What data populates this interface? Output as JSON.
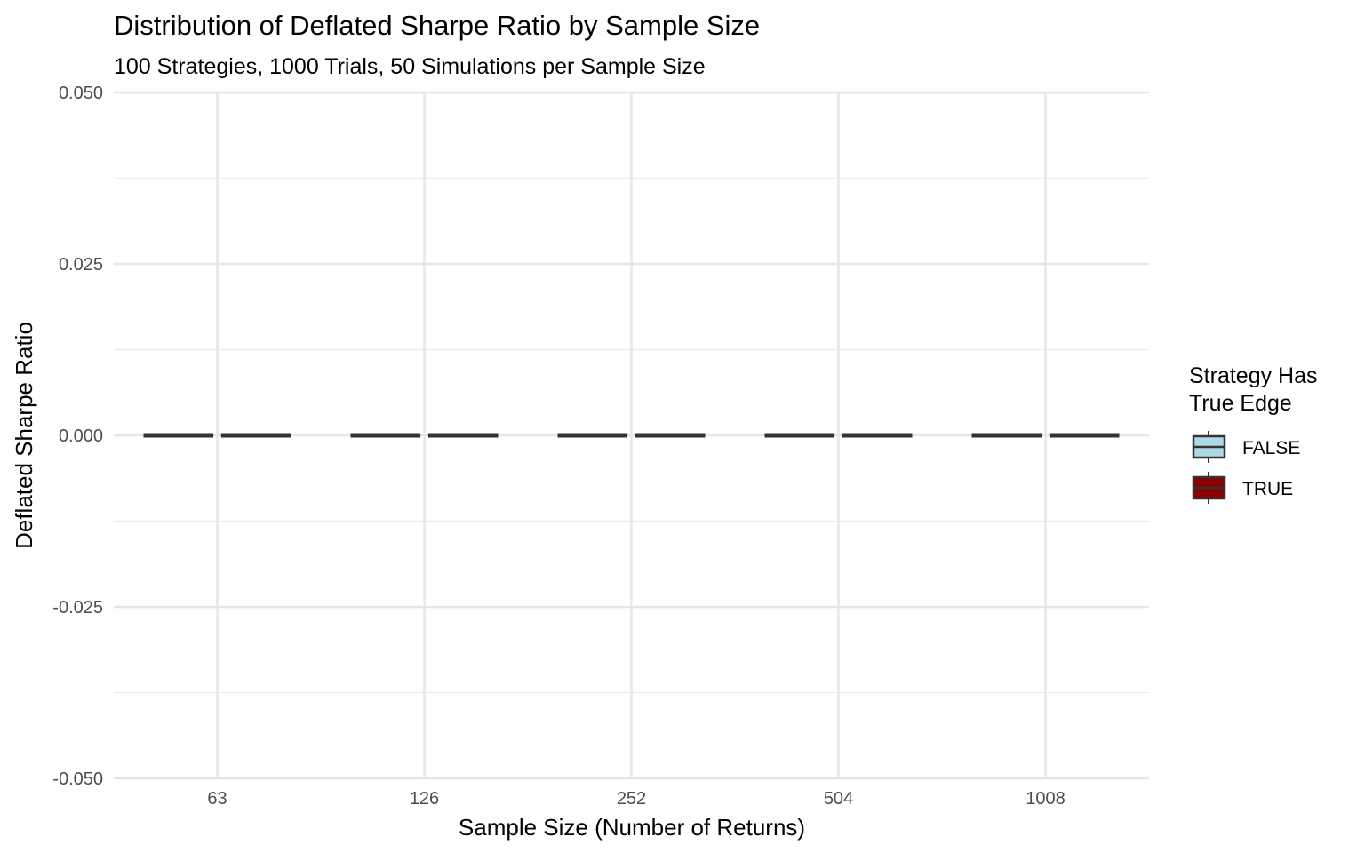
{
  "chart_data": {
    "type": "boxplot",
    "title": "Distribution of Deflated Sharpe Ratio by Sample Size",
    "subtitle": "100 Strategies, 1000 Trials, 50 Simulations per Sample Size",
    "xlabel": "Sample Size (Number of Returns)",
    "ylabel": "Deflated Sharpe Ratio",
    "categories": [
      "63",
      "126",
      "252",
      "504",
      "1008"
    ],
    "ylim": [
      -0.05,
      0.05
    ],
    "yticks": [
      -0.05,
      -0.025,
      0.0,
      0.025,
      0.05
    ],
    "ytick_labels": [
      "-0.050",
      "-0.025",
      "0.000",
      "0.025",
      "0.050"
    ],
    "grid": true,
    "legend": {
      "title_lines": [
        "Strategy Has",
        "True Edge"
      ],
      "position": "right"
    },
    "series": [
      {
        "name": "FALSE",
        "color": "#add8e6",
        "boxes": [
          {
            "min": 0,
            "q1": 0,
            "median": 0,
            "q3": 0,
            "max": 0
          },
          {
            "min": 0,
            "q1": 0,
            "median": 0,
            "q3": 0,
            "max": 0
          },
          {
            "min": 0,
            "q1": 0,
            "median": 0,
            "q3": 0,
            "max": 0
          },
          {
            "min": 0,
            "q1": 0,
            "median": 0,
            "q3": 0,
            "max": 0
          },
          {
            "min": 0,
            "q1": 0,
            "median": 0,
            "q3": 0,
            "max": 0
          }
        ]
      },
      {
        "name": "TRUE",
        "color": "#8b0000",
        "boxes": [
          {
            "min": 0,
            "q1": 0,
            "median": 0,
            "q3": 0,
            "max": 0
          },
          {
            "min": 0,
            "q1": 0,
            "median": 0,
            "q3": 0,
            "max": 0
          },
          {
            "min": 0,
            "q1": 0,
            "median": 0,
            "q3": 0,
            "max": 0
          },
          {
            "min": 0,
            "q1": 0,
            "median": 0,
            "q3": 0,
            "max": 0
          },
          {
            "min": 0,
            "q1": 0,
            "median": 0,
            "q3": 0,
            "max": 0
          }
        ]
      }
    ]
  }
}
